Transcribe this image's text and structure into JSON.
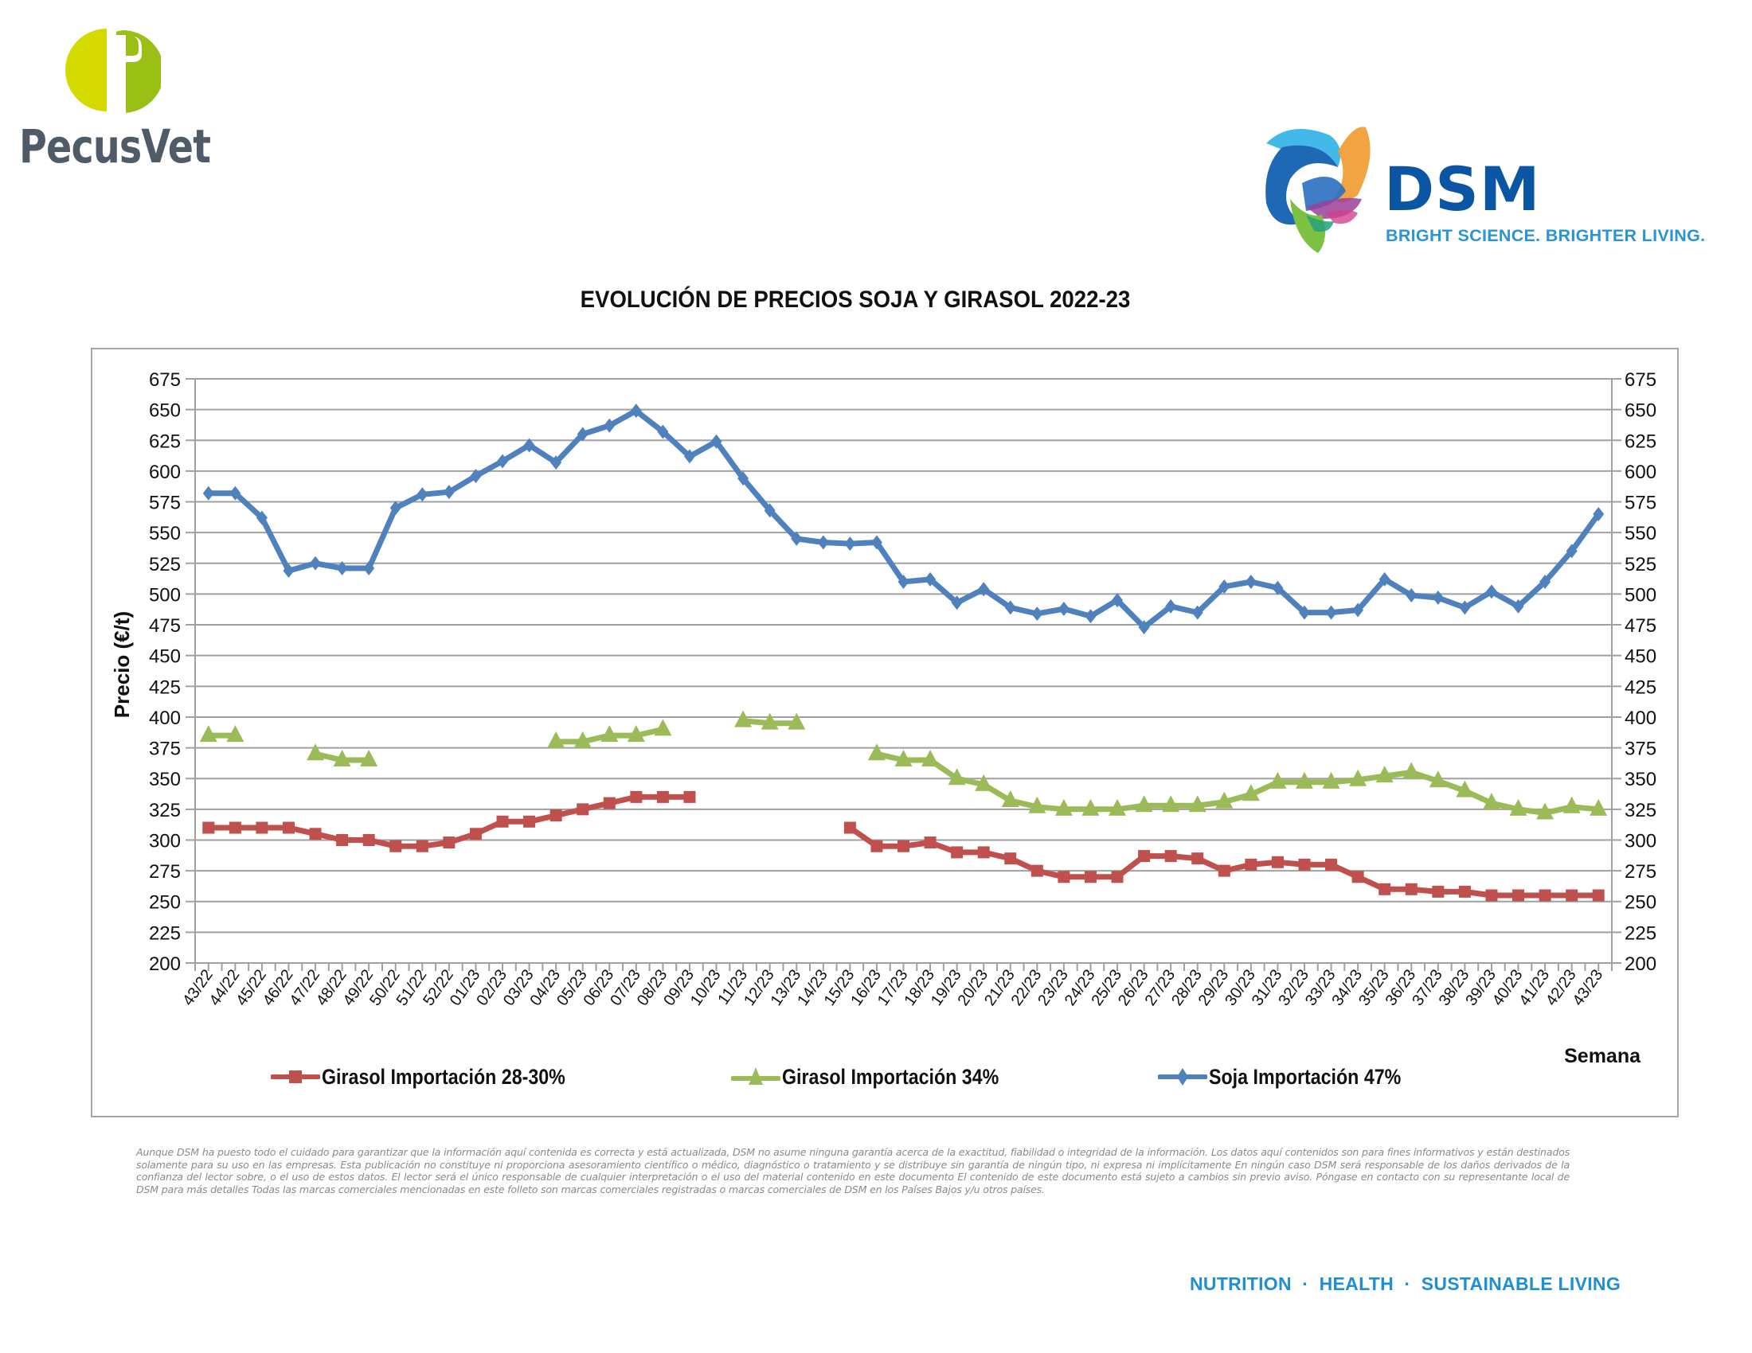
{
  "header": {
    "left_logo": {
      "name": "PecusVet",
      "text": "PecusVet",
      "colors": {
        "circle_left": "#d4da00",
        "circle_right": "#9bc015",
        "text": "#4f5b68"
      }
    },
    "right_logo": {
      "name": "DSM",
      "text": "DSM",
      "tagline": "BRIGHT SCIENCE. BRIGHTER LIVING.",
      "colors": {
        "wordmark": "#0b55a5",
        "tagline": "#2b95d3"
      }
    }
  },
  "chart_data": {
    "type": "line",
    "title": "EVOLUCIÓN DE PRECIOS SOJA Y GIRASOL 2022-23",
    "xlabel": "Semana",
    "ylabel": "Precio (€/t)",
    "ylim": [
      200,
      675
    ],
    "ytick_step": 25,
    "yticks": [
      "675",
      "650",
      "625",
      "600",
      "575",
      "550",
      "525",
      "500",
      "475",
      "450",
      "425",
      "400",
      "375",
      "350",
      "325",
      "300",
      "275",
      "250",
      "225",
      "200"
    ],
    "secondary_y_axis_mirrors_primary": true,
    "grid": "horizontal",
    "legend_position": "bottom",
    "categories": [
      "43/22",
      "44/22",
      "45/22",
      "46/22",
      "47/22",
      "48/22",
      "49/22",
      "50/22",
      "51/22",
      "52/22",
      "01/23",
      "02/23",
      "03/23",
      "04/23",
      "05/23",
      "06/23",
      "07/23",
      "08/23",
      "09/23",
      "10/23",
      "11/23",
      "12/23",
      "13/23",
      "14/23",
      "15/23",
      "16/23",
      "17/23",
      "18/23",
      "19/23",
      "20/23",
      "21/23",
      "22/23",
      "23/23",
      "24/23",
      "25/23",
      "26/23",
      "27/23",
      "28/23",
      "29/23",
      "30/23",
      "31/23",
      "32/23",
      "33/23",
      "34/23",
      "35/23",
      "36/23",
      "37/23",
      "38/23",
      "39/23",
      "40/23",
      "41/23",
      "42/23",
      "43/23"
    ],
    "series": [
      {
        "name": "Girasol Importación 28-30%",
        "color": "#c0504d",
        "marker": "square",
        "values": [
          310,
          310,
          310,
          310,
          305,
          300,
          300,
          295,
          295,
          298,
          305,
          315,
          315,
          320,
          325,
          330,
          335,
          335,
          335,
          null,
          null,
          null,
          null,
          null,
          310,
          295,
          295,
          298,
          290,
          290,
          285,
          275,
          270,
          270,
          270,
          287,
          287,
          285,
          275,
          280,
          282,
          280,
          280,
          270,
          260,
          260,
          258,
          258,
          255,
          255,
          255,
          255,
          255
        ]
      },
      {
        "name": "Girasol Importación 34%",
        "color": "#9bbb59",
        "marker": "triangle",
        "values": [
          385,
          385,
          null,
          null,
          370,
          365,
          365,
          null,
          null,
          null,
          null,
          null,
          null,
          380,
          380,
          385,
          385,
          390,
          null,
          null,
          397,
          395,
          395,
          null,
          null,
          370,
          365,
          365,
          350,
          345,
          332,
          327,
          325,
          325,
          325,
          328,
          328,
          328,
          331,
          337,
          347,
          347,
          347,
          349,
          352,
          355,
          348,
          340,
          330,
          325,
          322,
          327,
          325
        ]
      },
      {
        "name": "Soja Importación 47%",
        "color": "#4f81bd",
        "marker": "diamond",
        "values": [
          582,
          582,
          562,
          519,
          525,
          521,
          521,
          570,
          581,
          583,
          596,
          608,
          621,
          607,
          630,
          637,
          649,
          632,
          612,
          624,
          594,
          568,
          545,
          542,
          541,
          542,
          510,
          512,
          493,
          504,
          489,
          484,
          488,
          482,
          495,
          473,
          490,
          485,
          506,
          510,
          505,
          485,
          485,
          487,
          512,
          499,
          497,
          489,
          502,
          490,
          510,
          535,
          565
        ]
      }
    ]
  },
  "footer": {
    "disclaimer": "Aunque DSM ha puesto todo el cuidado para garantizar que la información aquí contenida es correcta y está actualizada, DSM no asume ninguna garantía acerca de la exactitud, fiabilidad o integridad de la información. Los datos aquí contenidos son para fines informativos y están destinados solamente para su uso en las empresas. Esta publicación no constituye ni proporciona asesoramiento científico o médico, diagnóstico o tratamiento y se distribuye sin garantía de ningún tipo, ni expresa ni implícitamente En ningún caso DSM será responsable de los daños derivados de la confianza del lector sobre, o el uso de estos datos. El lector será el único responsable de cualquier interpretación o el uso del material contenido en este documento El contenido de este documento está sujeto a cambios sin previo aviso. Póngase en contacto con su representante local de DSM para más detalles Todas las marcas comerciales mencionadas en este folleto son marcas comerciales registradas o marcas comerciales de DSM en los Países Bajos y/u otros países.",
    "tagline": "NUTRITION  ·  HEALTH  ·  SUSTAINABLE LIVING",
    "tagline_color": "#1e8fd5"
  }
}
